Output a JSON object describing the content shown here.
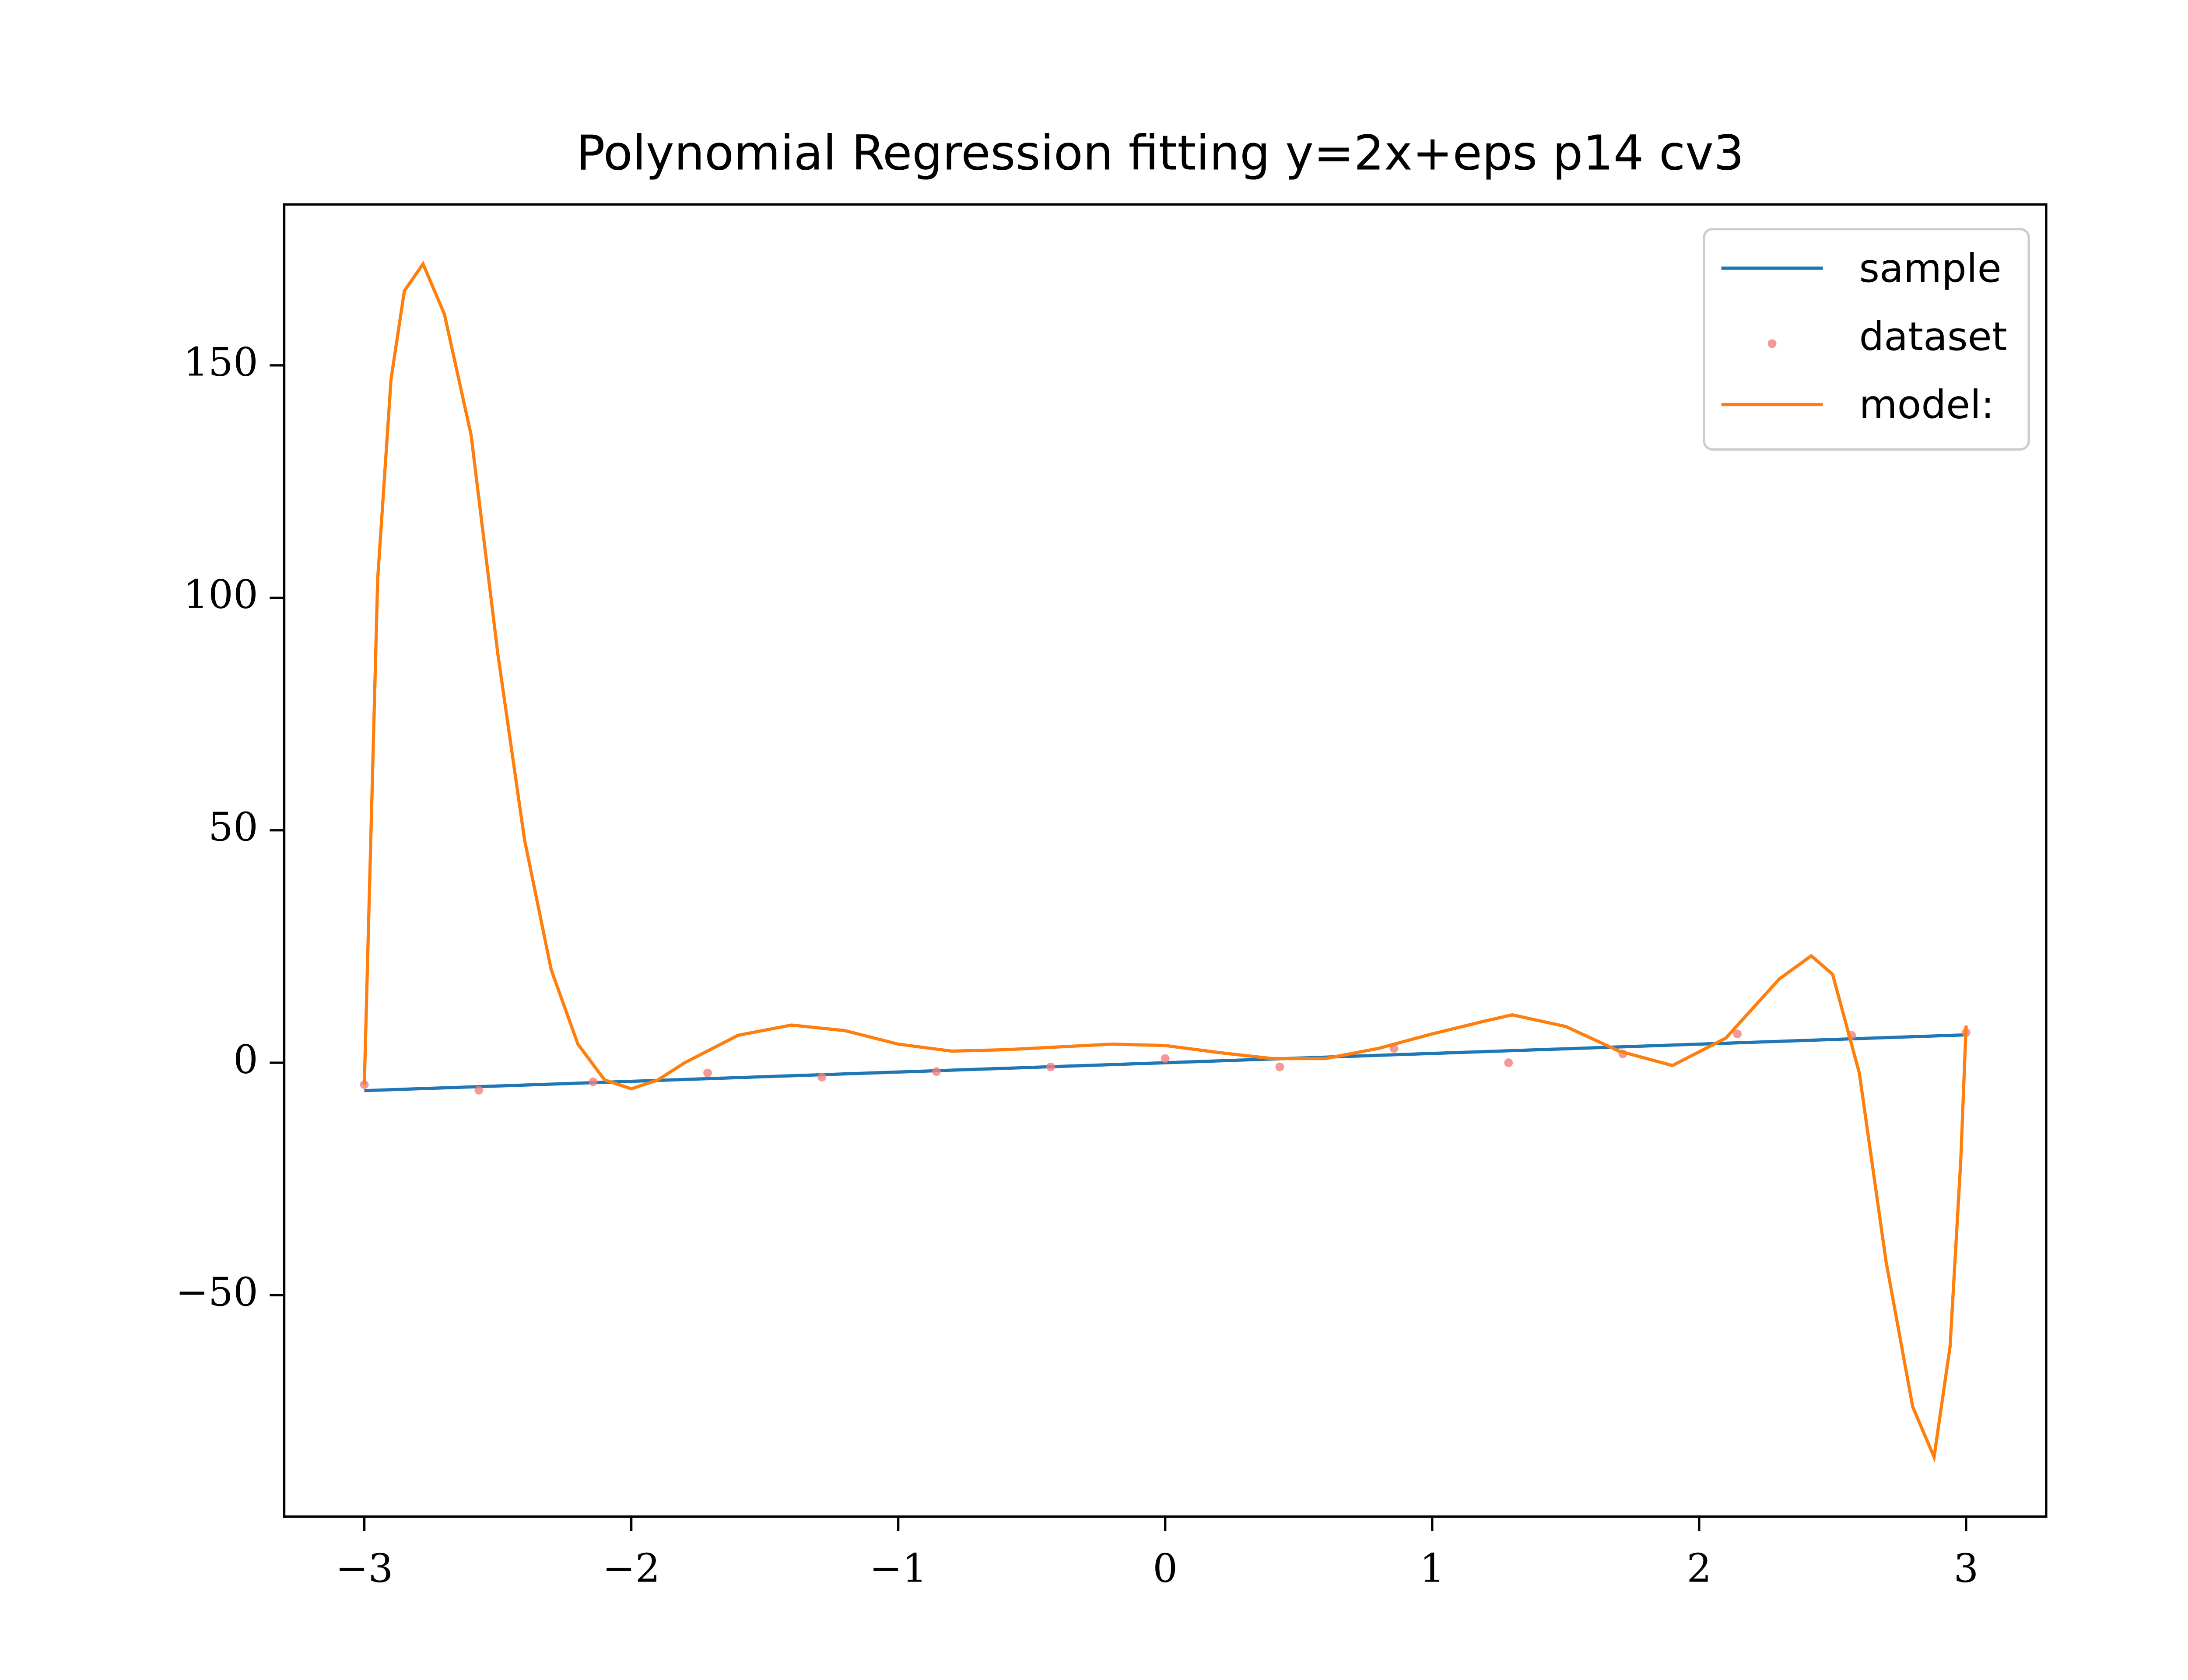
{
  "chart_data": {
    "type": "line",
    "title": "Polynomial Regression fitting y=2x+eps p14 cv3",
    "xlim": [
      -3.3,
      3.3
    ],
    "ylim": [
      -97.6,
      184.6
    ],
    "xticks": [
      {
        "value": -3,
        "label": "−3"
      },
      {
        "value": -2,
        "label": "−2"
      },
      {
        "value": -1,
        "label": "−1"
      },
      0,
      1,
      2,
      3
    ],
    "yticks": [
      {
        "value": -50,
        "label": "−50"
      },
      0,
      50,
      100,
      150
    ],
    "legend": "upper right",
    "series": [
      {
        "name": "sample",
        "type": "line",
        "color": "#1f77b4",
        "x": [
          -3,
          3
        ],
        "values": [
          -6,
          6
        ]
      },
      {
        "name": "dataset",
        "type": "scatter",
        "color": "#f08080",
        "x": [
          -3,
          -2.571,
          -2.143,
          -1.714,
          -1.286,
          -0.857,
          -0.429,
          0,
          0.429,
          0.857,
          1.286,
          1.714,
          2.143,
          2.571,
          3
        ],
        "values": [
          -4.7,
          -5.9,
          -4.1,
          -2.2,
          -3.1,
          -1.9,
          -0.9,
          0.9,
          -0.9,
          3.1,
          0,
          1.9,
          6.2,
          5.9,
          6.5
        ]
      },
      {
        "name": "model:",
        "type": "line",
        "color": "#ff7f0e",
        "x": [
          -3,
          -2.95,
          -2.9,
          -2.85,
          -2.78,
          -2.7,
          -2.6,
          -2.5,
          -2.4,
          -2.3,
          -2.2,
          -2.1,
          -2.0,
          -1.9,
          -1.8,
          -1.6,
          -1.4,
          -1.2,
          -1.0,
          -0.8,
          -0.6,
          -0.4,
          -0.2,
          0,
          0.2,
          0.4,
          0.6,
          0.8,
          1.0,
          1.2,
          1.3,
          1.5,
          1.7,
          1.9,
          2.1,
          2.3,
          2.42,
          2.5,
          2.6,
          2.7,
          2.8,
          2.88,
          2.94,
          2.98,
          3.0
        ],
        "values": [
          -4.7,
          104,
          147,
          166,
          171.8,
          161,
          135,
          88,
          48,
          20,
          4,
          -3.7,
          -5.6,
          -3.7,
          0,
          5.9,
          8.1,
          6.9,
          4,
          2.5,
          2.8,
          3.4,
          4,
          3.7,
          2.2,
          0.9,
          0.9,
          3.1,
          6.2,
          9,
          10.3,
          7.8,
          2.5,
          -0.6,
          5.3,
          18,
          23,
          19,
          -2.2,
          -42.7,
          -74,
          -84.8,
          -61,
          -21,
          8
        ]
      }
    ]
  }
}
